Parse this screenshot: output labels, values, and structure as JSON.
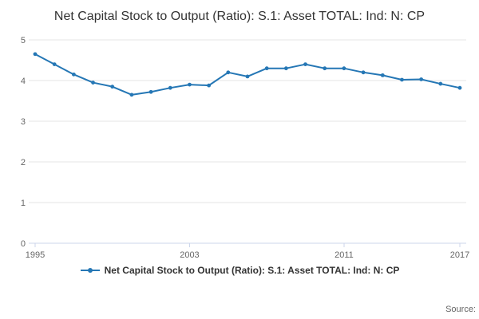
{
  "page": {
    "title": "Net Capital Stock to Output (Ratio): S.1: Asset TOTAL: Ind: N: CP",
    "source_label": "Source:"
  },
  "legend": {
    "series_label": "Net Capital Stock to Output (Ratio): S.1: Asset TOTAL: Ind: N: CP"
  },
  "chart_data": {
    "type": "line",
    "title": "Net Capital Stock to Output (Ratio): S.1: Asset TOTAL: Ind: N: CP",
    "x": [
      1995,
      1996,
      1997,
      1998,
      1999,
      2000,
      2001,
      2002,
      2003,
      2004,
      2005,
      2006,
      2007,
      2008,
      2009,
      2010,
      2011,
      2012,
      2013,
      2014,
      2015,
      2016,
      2017
    ],
    "series": [
      {
        "name": "Net Capital Stock to Output (Ratio): S.1: Asset TOTAL: Ind: N: CP",
        "color": "#2577b5",
        "values": [
          4.65,
          4.4,
          4.15,
          3.95,
          3.85,
          3.65,
          3.72,
          3.82,
          3.9,
          3.88,
          4.2,
          4.1,
          4.3,
          4.3,
          4.4,
          4.3,
          4.3,
          4.2,
          4.13,
          4.02,
          4.03,
          3.92,
          3.82
        ]
      }
    ],
    "xlim": [
      1995,
      2017
    ],
    "ylim": [
      0,
      5
    ],
    "yticks": [
      0,
      1,
      2,
      3,
      4,
      5
    ],
    "xticks": [
      1995,
      2003,
      2011,
      2017
    ],
    "grid": true,
    "grid_color": "#e6e6e6",
    "axis_color": "#ccd6eb",
    "tick_label_color": "#666666",
    "legend_position": "bottom",
    "xlabel": "",
    "ylabel": ""
  }
}
